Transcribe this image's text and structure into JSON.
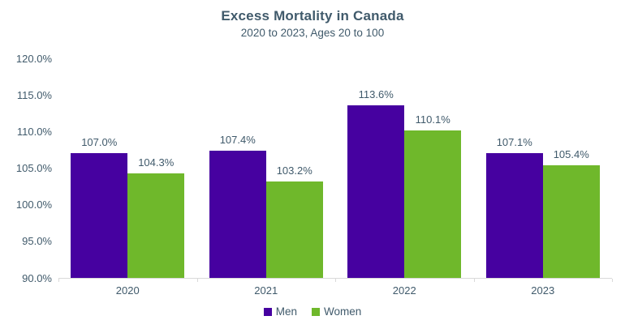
{
  "header": {
    "title": "Excess Mortality in Canada",
    "subtitle": "2020 to 2023, Ages 20 to 100"
  },
  "colors": {
    "men": "#4601A0",
    "women": "#6FB82B",
    "text": "#405A6B",
    "axis_line": "#D9D9D9",
    "background": "#FFFFFF"
  },
  "chart_data": {
    "type": "bar",
    "title": "Excess Mortality in Canada",
    "subtitle": "2020 to 2023, Ages 20 to 100",
    "categories": [
      "2020",
      "2021",
      "2022",
      "2023"
    ],
    "series": [
      {
        "name": "Men",
        "color": "#4601A0",
        "values": [
          107.0,
          107.4,
          113.6,
          107.1
        ],
        "data_labels": [
          "107.0%",
          "107.4%",
          "113.6%",
          "107.1%"
        ]
      },
      {
        "name": "Women",
        "color": "#6FB82B",
        "values": [
          104.3,
          103.2,
          110.1,
          105.4
        ],
        "data_labels": [
          "104.3%",
          "103.2%",
          "110.1%",
          "105.4%"
        ]
      }
    ],
    "ylim": [
      90,
      120
    ],
    "ytick_step": 5,
    "ytick_labels": [
      "90.0%",
      "95.0%",
      "100.0%",
      "105.0%",
      "110.0%",
      "115.0%",
      "120.0%"
    ],
    "xlabel": "",
    "ylabel": "",
    "grid": false,
    "data_labels_shown": true,
    "legend_position": "bottom",
    "legend": [
      "Men",
      "Women"
    ]
  }
}
